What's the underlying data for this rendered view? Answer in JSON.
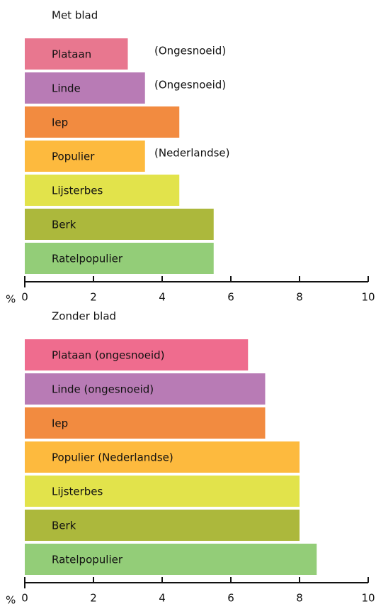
{
  "chart_data": [
    {
      "type": "bar",
      "title": "Met blad",
      "categories": [
        "Plataan",
        "Linde",
        "Iep",
        "Populier",
        "Lijsterbes",
        "Berk",
        "Ratelpopulier"
      ],
      "values": [
        3,
        3.5,
        4.5,
        3.5,
        4.5,
        5.5,
        5.5
      ],
      "annotations": [
        "(Ongesnoeid)",
        "(Ongesnoeid)",
        null,
        "(Nederlandse)",
        null,
        null,
        null
      ],
      "colors": [
        "#e8778f",
        "#b87bb5",
        "#f28b40",
        "#fdba3e",
        "#e2e34b",
        "#acb83c",
        "#93cd78"
      ],
      "xlabel": "%",
      "xlim": [
        0,
        10
      ],
      "xticks": [
        0,
        2,
        4,
        6,
        8,
        10
      ]
    },
    {
      "type": "bar",
      "title": "Zonder blad",
      "categories": [
        "Plataan (ongesnoeid)",
        "Linde (ongesnoeid)",
        "Iep",
        "Populier (Nederlandse)",
        "Lijsterbes",
        "Berk",
        "Ratelpopulier"
      ],
      "values": [
        6.5,
        7,
        7,
        8,
        8,
        8,
        8.5
      ],
      "colors": [
        "#ef6c8e",
        "#b87bb5",
        "#f28b40",
        "#fdba3e",
        "#e2e34b",
        "#acb83c",
        "#93cd78"
      ],
      "xlabel": "%",
      "xlim": [
        0,
        10
      ],
      "xticks": [
        0,
        2,
        4,
        6,
        8,
        10
      ]
    }
  ]
}
